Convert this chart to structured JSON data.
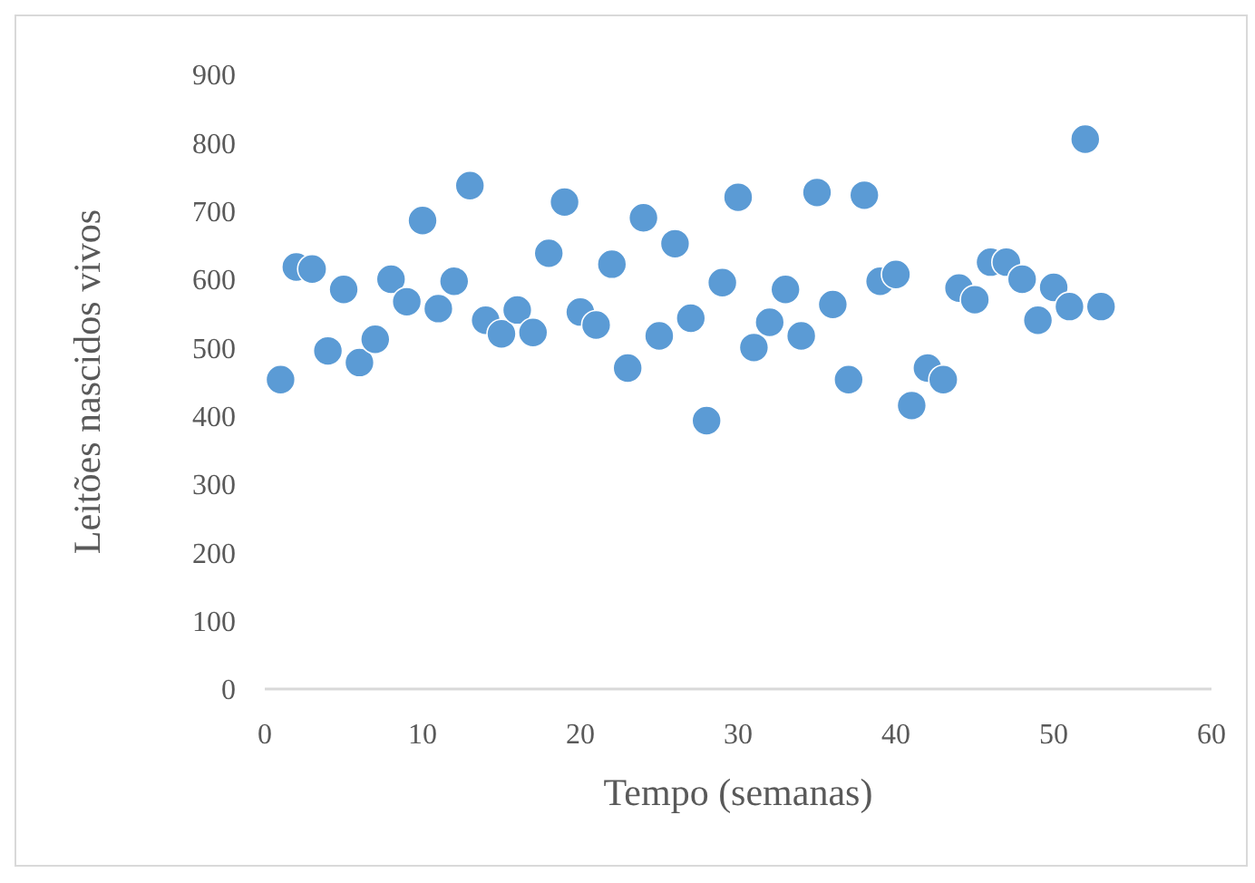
{
  "chart_data": {
    "type": "scatter",
    "xlabel": "Tempo (semanas)",
    "ylabel": "Leitões nascidos vivos",
    "x": [
      1,
      2,
      3,
      4,
      5,
      6,
      7,
      8,
      9,
      10,
      11,
      12,
      13,
      14,
      15,
      16,
      17,
      18,
      19,
      20,
      21,
      22,
      23,
      24,
      25,
      26,
      27,
      28,
      29,
      30,
      31,
      32,
      33,
      34,
      35,
      36,
      37,
      38,
      39,
      40,
      41,
      42,
      43,
      44,
      45,
      46,
      47,
      48,
      49,
      50,
      51,
      52,
      53
    ],
    "values": [
      453,
      618,
      615,
      495,
      585,
      478,
      512,
      600,
      567,
      686,
      557,
      597,
      737,
      540,
      520,
      555,
      522,
      638,
      713,
      552,
      533,
      622,
      470,
      690,
      517,
      652,
      543,
      393,
      595,
      720,
      500,
      537,
      585,
      517,
      727,
      563,
      453,
      723,
      597,
      607,
      415,
      470,
      453,
      587,
      570,
      625,
      625,
      600,
      540,
      588,
      560,
      805,
      560
    ],
    "color": "#5b9bd5",
    "marker": "circle",
    "xlim": [
      0,
      60
    ],
    "xticks": [
      0,
      10,
      20,
      30,
      40,
      50,
      60
    ],
    "ylim": [
      0,
      900
    ],
    "yticks": [
      0,
      100,
      200,
      300,
      400,
      500,
      600,
      700,
      800,
      900
    ],
    "grid": false
  }
}
